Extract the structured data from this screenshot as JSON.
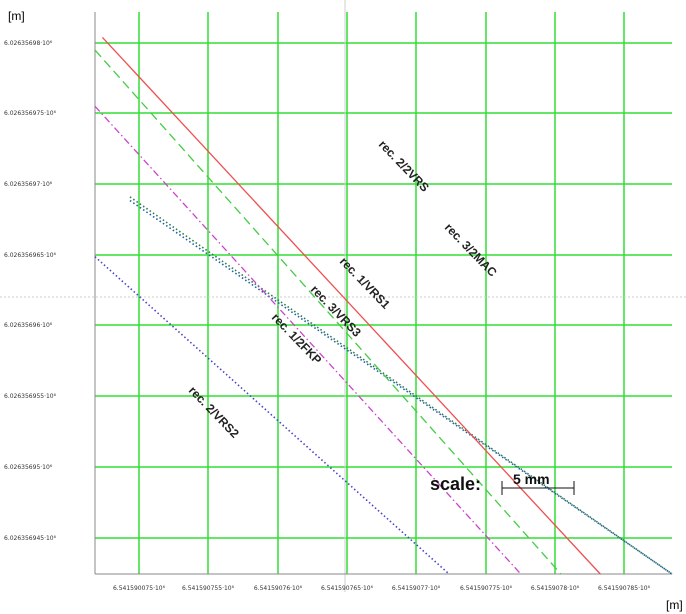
{
  "chart_data": {
    "type": "line",
    "xlabel": "[m]",
    "ylabel": "[m]",
    "x_ticks": [
      "6.541590075·10⁶",
      "6.541590755·10⁶",
      "6.54159076·10⁶",
      "6.541590765·10⁶",
      "6.54159077·10⁶",
      "6.541590775·10⁶",
      "6.54159078·10⁶",
      "6.541590785·10⁶"
    ],
    "y_ticks": [
      "6.02635698·10⁶",
      "6.026356975·10⁶",
      "6.02635697·10⁶",
      "6.026356965·10⁶",
      "6.02635696·10⁶",
      "6.026356955·10⁶",
      "6.02635695·10⁶",
      "6.026356945·10⁶"
    ],
    "grid": true,
    "grid_color": "#33dd33",
    "series": [
      {
        "name": "rec. 2/2VRS",
        "color": "#1f5fa8",
        "style": "dotted",
        "x": [
          4,
          66
        ],
        "y": [
          10.3,
          0
        ]
      },
      {
        "name": "rec. 3/2MAC",
        "color": "#2a7a4a",
        "style": "dotted",
        "x": [
          4,
          66
        ],
        "y": [
          10.4,
          0
        ]
      },
      {
        "name": "rec. 1/VRS1",
        "color": "#ee5050",
        "style": "solid",
        "x": [
          0.85,
          57.8
        ],
        "y": [
          14.8,
          0
        ]
      },
      {
        "name": "rec. 3/VRS3",
        "color": "#44cc44",
        "style": "dashed",
        "x": [
          0,
          53.3
        ],
        "y": [
          14.45,
          0
        ]
      },
      {
        "name": "rec. 1/2FKP",
        "color": "#cc44cc",
        "style": "dashdot",
        "x": [
          0,
          48.7
        ],
        "y": [
          12.9,
          0
        ]
      },
      {
        "name": "rec. 2/VRS2",
        "color": "#4444cc",
        "style": "dotted",
        "x": [
          0,
          40.5
        ],
        "y": [
          8.75,
          0
        ]
      }
    ],
    "scale": {
      "label": "scale:",
      "value": "5 mm"
    }
  }
}
